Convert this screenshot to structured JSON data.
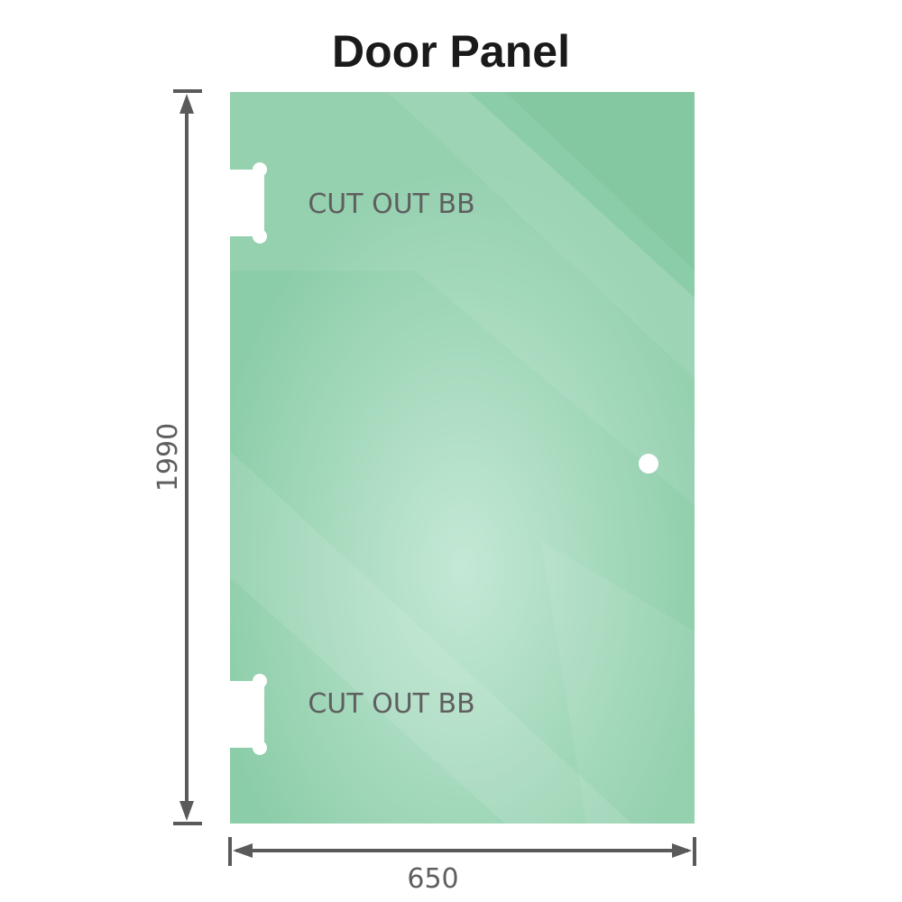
{
  "title": "Door Panel",
  "dimensions": {
    "height": "1990",
    "width": "650"
  },
  "cutouts": [
    {
      "label": "CUT OUT BB"
    },
    {
      "label": "CUT OUT BB"
    }
  ],
  "colors": {
    "glass": "#86cba6",
    "glass_highlight": "#bfe6d2",
    "dimension_line": "#5a5a5a",
    "label": "#5f5f5f"
  }
}
